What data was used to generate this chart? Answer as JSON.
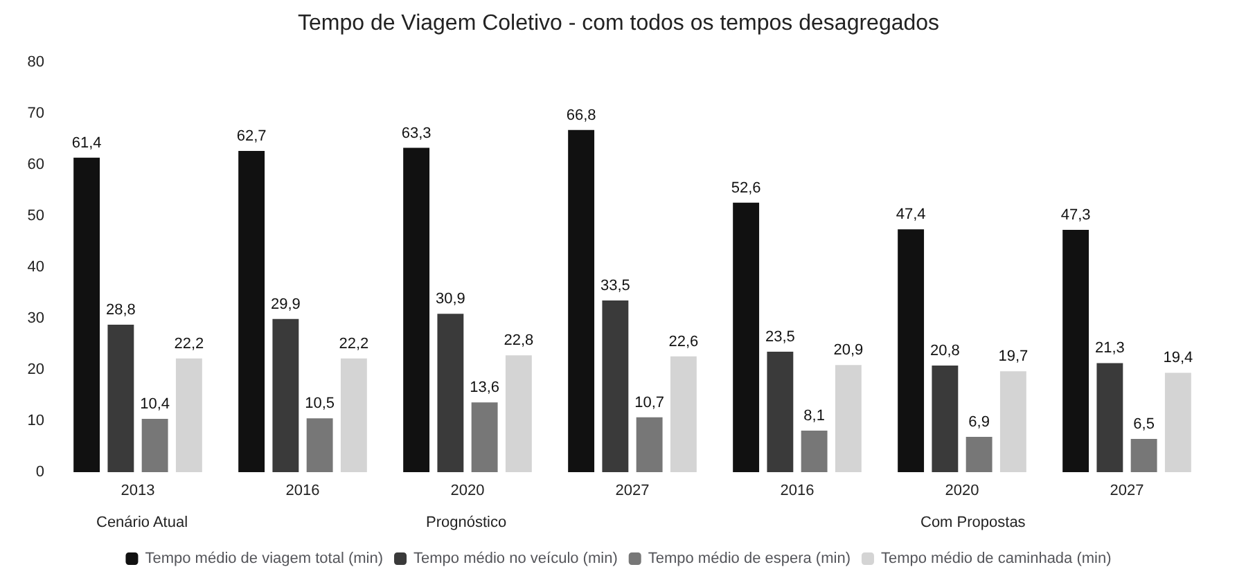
{
  "chart_data": {
    "type": "bar",
    "title": "Tempo de Viagem Coletivo - com todos os tempos desagregados",
    "categories": [
      "2013",
      "2016",
      "2020",
      "2027",
      "2016",
      "2020",
      "2027"
    ],
    "series": [
      {
        "name": "Tempo médio de viagem total (min)",
        "color": "#111111",
        "values": [
          61.4,
          62.7,
          63.3,
          66.8,
          52.6,
          47.4,
          47.3
        ],
        "value_labels": [
          "61,4",
          "62,7",
          "63,3",
          "66,8",
          "52,6",
          "47,4",
          "47,3"
        ]
      },
      {
        "name": "Tempo médio no veículo (min)",
        "color": "#3a3a3a",
        "values": [
          28.8,
          29.9,
          30.9,
          33.5,
          23.5,
          20.8,
          21.3
        ],
        "value_labels": [
          "28,8",
          "29,9",
          "30,9",
          "33,5",
          "23,5",
          "20,8",
          "21,3"
        ]
      },
      {
        "name": "Tempo médio de espera (min)",
        "color": "#777777",
        "values": [
          10.4,
          10.5,
          13.6,
          10.7,
          8.1,
          6.9,
          6.5
        ],
        "value_labels": [
          "10,4",
          "10,5",
          "13,6",
          "10,7",
          "8,1",
          "6,9",
          "6,5"
        ]
      },
      {
        "name": "Tempo médio de caminhada (min)",
        "color": "#d4d4d4",
        "values": [
          22.2,
          22.2,
          22.8,
          22.6,
          20.9,
          19.7,
          19.4
        ],
        "value_labels": [
          "22,2",
          "22,2",
          "22,8",
          "22,6",
          "20,9",
          "19,7",
          "19,4"
        ]
      }
    ],
    "annotations": [
      "Cenário Atual",
      "Prognóstico",
      "Com Propostas"
    ],
    "ylim": [
      0,
      80
    ],
    "yticks": [
      0,
      10,
      20,
      30,
      40,
      50,
      60,
      70,
      80
    ],
    "grid": false,
    "legend": "bottom"
  }
}
